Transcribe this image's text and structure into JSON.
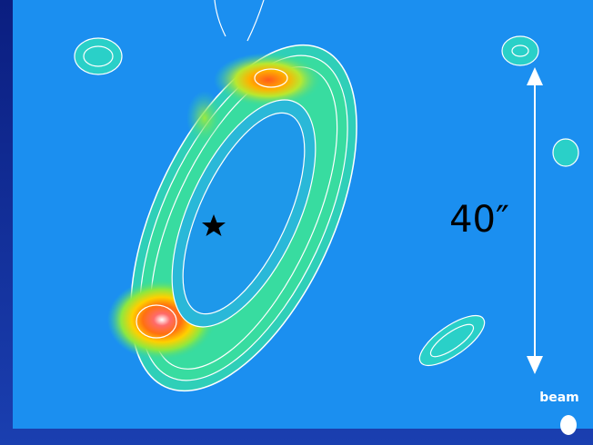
{
  "image": {
    "scale_label": "40″",
    "beam_label": "beam"
  }
}
